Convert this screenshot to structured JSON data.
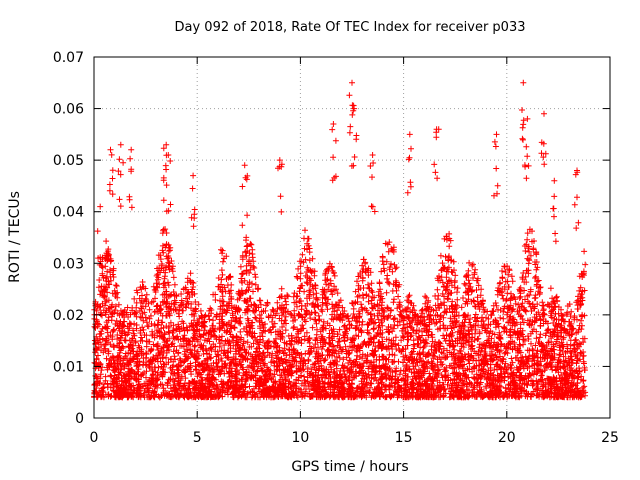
{
  "chart_data": {
    "type": "scatter",
    "title": "Day 092 of 2018, Rate Of TEC Index for receiver p033",
    "xlabel": "GPS time / hours",
    "ylabel": "ROTI / TECUs",
    "xlim": [
      0,
      25
    ],
    "ylim": [
      0,
      0.07
    ],
    "x_ticks": [
      0,
      5,
      10,
      15,
      20,
      25
    ],
    "x_tick_labels": [
      "0",
      "5",
      "10",
      "15",
      "20",
      "25"
    ],
    "y_ticks": [
      0,
      0.01,
      0.02,
      0.03,
      0.04,
      0.05,
      0.06,
      0.07
    ],
    "y_tick_labels": [
      "0",
      "0.01",
      "0.02",
      "0.03",
      "0.04",
      "0.05",
      "0.06",
      "0.07"
    ],
    "grid": true,
    "marker": "plus",
    "series": [
      {
        "color": "#ff0000",
        "x_range": [
          0,
          23.8
        ],
        "typical_y_range": [
          0.002,
          0.035
        ],
        "notable_peaks": [
          {
            "x": 0.3,
            "y": 0.041
          },
          {
            "x": 0.8,
            "y": 0.052
          },
          {
            "x": 1.3,
            "y": 0.053
          },
          {
            "x": 1.8,
            "y": 0.052
          },
          {
            "x": 3.5,
            "y": 0.053
          },
          {
            "x": 3.6,
            "y": 0.051
          },
          {
            "x": 4.8,
            "y": 0.047
          },
          {
            "x": 7.3,
            "y": 0.049
          },
          {
            "x": 9.0,
            "y": 0.05
          },
          {
            "x": 11.6,
            "y": 0.057
          },
          {
            "x": 12.5,
            "y": 0.065
          },
          {
            "x": 12.6,
            "y": 0.06
          },
          {
            "x": 13.5,
            "y": 0.051
          },
          {
            "x": 15.3,
            "y": 0.055
          },
          {
            "x": 16.6,
            "y": 0.056
          },
          {
            "x": 19.5,
            "y": 0.055
          },
          {
            "x": 20.8,
            "y": 0.065
          },
          {
            "x": 21.0,
            "y": 0.058
          },
          {
            "x": 21.8,
            "y": 0.059
          },
          {
            "x": 22.3,
            "y": 0.046
          },
          {
            "x": 23.4,
            "y": 0.048
          }
        ],
        "point_count_estimate": 6000
      }
    ]
  }
}
